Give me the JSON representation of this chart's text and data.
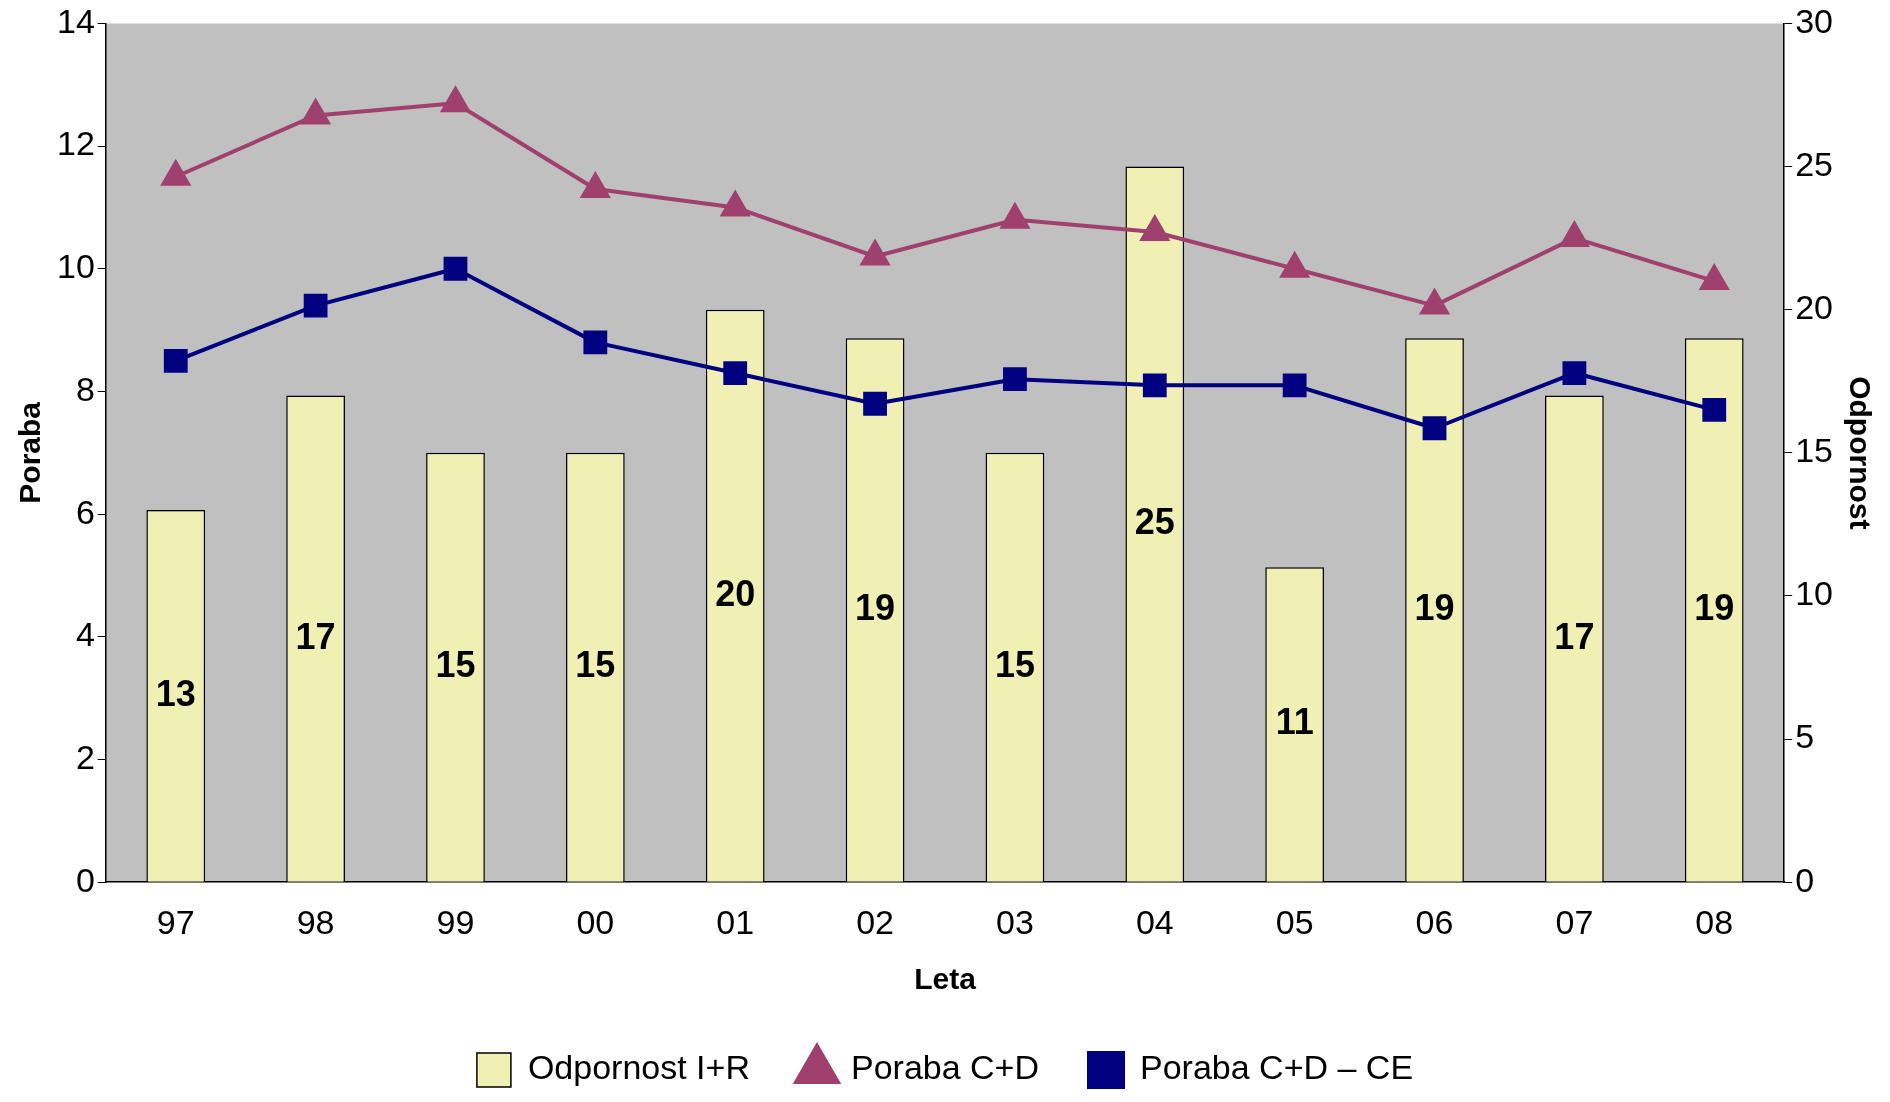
{
  "chart_data": {
    "type": "bar",
    "xlabel": "Leta",
    "ylabel": "Poraba",
    "y2label": "Odpornost",
    "categories": [
      "97",
      "98",
      "99",
      "00",
      "01",
      "02",
      "03",
      "04",
      "05",
      "06",
      "07",
      "08"
    ],
    "series": [
      {
        "name": "Odpornost I+R",
        "axis": "y2",
        "color": "#f0f0b4",
        "values": [
          13,
          17,
          15,
          15,
          20,
          19,
          15,
          25,
          11,
          19,
          17,
          19
        ],
        "data_labels": true
      },
      {
        "name": "Poraba C+D",
        "type": "line",
        "axis": "y",
        "color": "#a0406e",
        "marker": "triangle",
        "values": [
          11.5,
          12.5,
          12.7,
          11.3,
          11.0,
          10.2,
          10.8,
          10.6,
          10.0,
          9.4,
          10.5,
          9.8
        ]
      },
      {
        "name": "Poraba C+D – CE",
        "type": "line",
        "axis": "y",
        "color": "#000080",
        "marker": "square",
        "values": [
          8.5,
          9.4,
          10.0,
          8.8,
          8.3,
          7.8,
          8.2,
          8.1,
          8.1,
          7.4,
          8.3,
          7.7
        ]
      }
    ],
    "ylim": [
      0,
      14
    ],
    "yticks": [
      0,
      2,
      4,
      6,
      8,
      10,
      12,
      14
    ],
    "y2lim": [
      0,
      30
    ],
    "y2ticks": [
      0,
      5,
      10,
      15,
      20,
      25,
      30
    ],
    "grid": false,
    "legend": "bottom"
  }
}
